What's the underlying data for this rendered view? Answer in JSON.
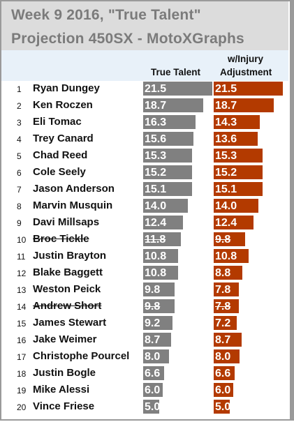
{
  "title_lines": [
    "Week 9 2016, \"True Talent\"",
    "Projection 450SX - MotoXGraphs"
  ],
  "headers": {
    "true_talent": "True Talent",
    "injury_line1": "w/Injury",
    "injury_line2": "Adjustment"
  },
  "colors": {
    "true_talent_bar": "#808080",
    "injury_bar": "#b33a00",
    "title_band": "#dcdcdc",
    "header_band": "#e8f1f9"
  },
  "chart_data": {
    "type": "bar",
    "orientation": "horizontal",
    "title": "Week 9 2016, \"True Talent\" Projection 450SX - MotoXGraphs",
    "ranks": [
      "1",
      "2",
      "3",
      "4",
      "5",
      "6",
      "7",
      "8",
      "9",
      "10",
      "11",
      "12",
      "13",
      "14",
      "15",
      "16",
      "17",
      "18",
      "19",
      "20"
    ],
    "categories": [
      "Ryan Dungey",
      "Ken Roczen",
      "Eli Tomac",
      "Trey Canard",
      "Chad Reed",
      "Cole Seely",
      "Jason Anderson",
      "Marvin Musquin",
      "Davi Millsaps",
      "Broc Tickle",
      "Justin Brayton",
      "Blake Baggett",
      "Weston Peick",
      "Andrew Short",
      "James Stewart",
      "Jake Weimer",
      "Christophe Pourcel",
      "Justin Bogle",
      "Mike Alessi",
      "Vince Friese"
    ],
    "struck_through": [
      false,
      false,
      false,
      false,
      false,
      false,
      false,
      false,
      false,
      true,
      false,
      false,
      false,
      true,
      false,
      false,
      false,
      false,
      false,
      false
    ],
    "series": [
      {
        "name": "True Talent",
        "values": [
          21.5,
          18.7,
          16.3,
          15.6,
          15.3,
          15.2,
          15.1,
          14.0,
          12.4,
          11.8,
          10.8,
          10.8,
          9.8,
          9.8,
          9.2,
          8.7,
          8.0,
          6.6,
          6.0,
          5.0
        ]
      },
      {
        "name": "w/Injury Adjustment",
        "values": [
          21.5,
          18.7,
          14.3,
          13.6,
          15.3,
          15.2,
          15.1,
          14.0,
          12.4,
          9.8,
          10.8,
          8.8,
          7.8,
          7.8,
          7.2,
          8.7,
          8.0,
          6.6,
          6.0,
          5.0
        ]
      }
    ],
    "labels": [
      [
        "21.5",
        "18.7",
        "16.3",
        "15.6",
        "15.3",
        "15.2",
        "15.1",
        "14.0",
        "12.4",
        "11.8",
        "10.8",
        "10.8",
        "9.8",
        "9.8",
        "9.2",
        "8.7",
        "8.0",
        "6.6",
        "6.0",
        "5.0"
      ],
      [
        "21.5",
        "18.7",
        "14.3",
        "13.6",
        "15.3",
        "15.2",
        "15.1",
        "14.0",
        "12.4",
        "9.8",
        "10.8",
        "8.8",
        "7.8",
        "7.8",
        "7.2",
        "8.7",
        "8.0",
        "6.6",
        "6.0",
        "5.0"
      ]
    ],
    "xlim": [
      0,
      21.5
    ]
  }
}
